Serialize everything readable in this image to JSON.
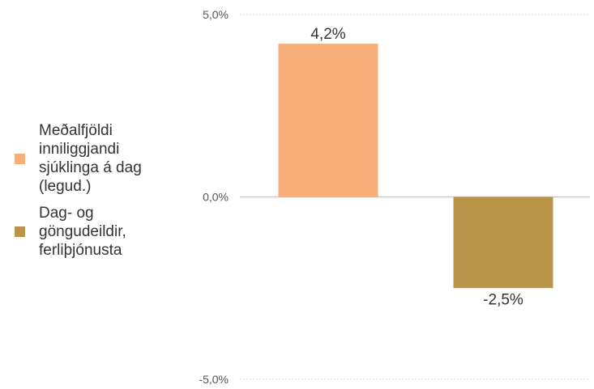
{
  "chart_data": {
    "type": "bar",
    "categories": [
      "Meðalfjöldi inniliggjandi sjúklinga á dag (legud.)",
      "Dag- og göngudeildir, ferliþjónusta"
    ],
    "series": [
      {
        "name": "Meðalfjöldi inniliggjandi sjúklinga á dag (legud.)",
        "values": [
          4.2,
          null
        ],
        "color": "#F8AE79"
      },
      {
        "name": "Dag- og göngudeildir, ferliþjónusta",
        "values": [
          null,
          -2.5
        ],
        "color": "#B89548"
      }
    ],
    "values": [
      4.2,
      -2.5
    ],
    "data_labels": [
      "4,2%",
      "-2,5%"
    ],
    "y_ticks": [
      -5.0,
      0.0,
      5.0
    ],
    "y_tick_labels": [
      "-5,0%",
      "0,0%",
      "5,0%"
    ],
    "ylim": [
      -5.0,
      5.0
    ],
    "title": "",
    "xlabel": "",
    "ylabel": "",
    "grid": true,
    "legend_position": "left"
  },
  "legend": {
    "items": [
      {
        "label": "Meðalfjöldi inniliggjandi sjúklinga á dag (legud.)",
        "color": "#F8AE79"
      },
      {
        "label": "Dag- og göngudeildir, ferliþjónusta",
        "color": "#B89548"
      }
    ]
  }
}
